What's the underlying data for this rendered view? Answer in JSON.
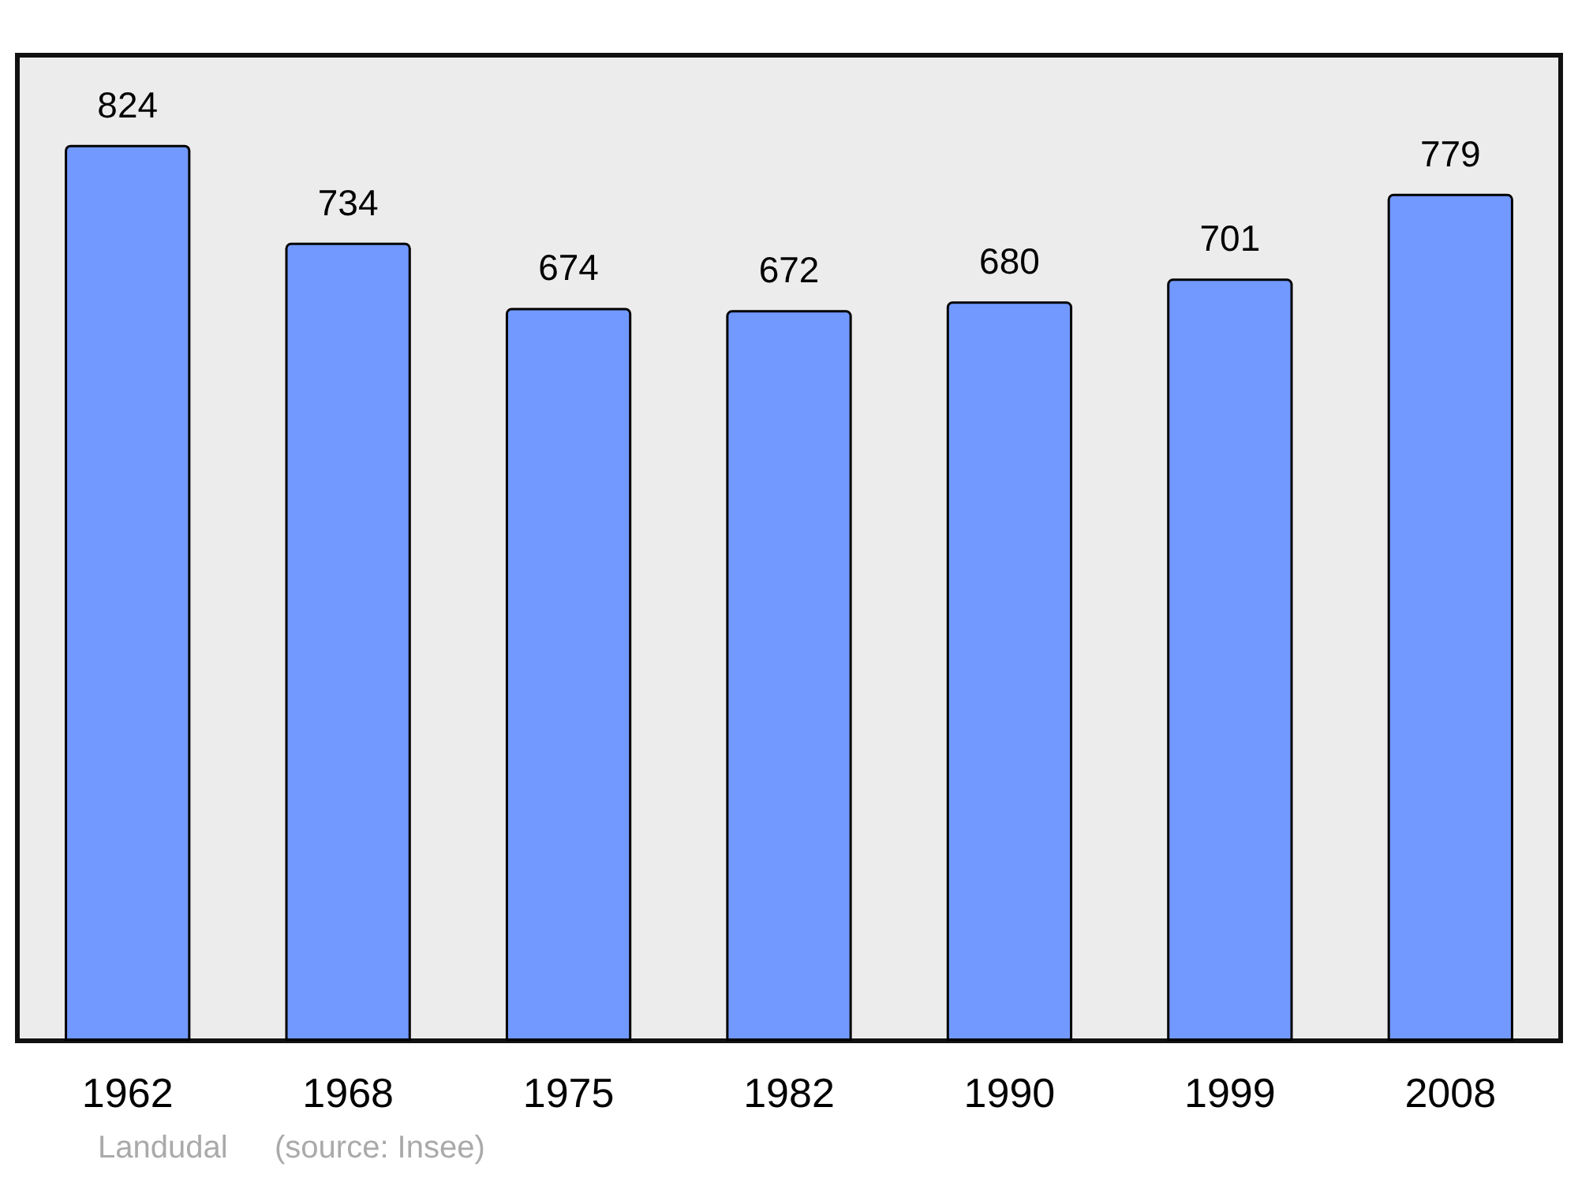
{
  "chart_data": {
    "type": "bar",
    "categories": [
      "1962",
      "1968",
      "1975",
      "1982",
      "1990",
      "1999",
      "2008"
    ],
    "values": [
      824,
      734,
      674,
      672,
      680,
      701,
      779
    ],
    "color": "#7299ff",
    "data_labels": true,
    "annotations": [
      "Landudal",
      "(source: Insee)"
    ]
  }
}
